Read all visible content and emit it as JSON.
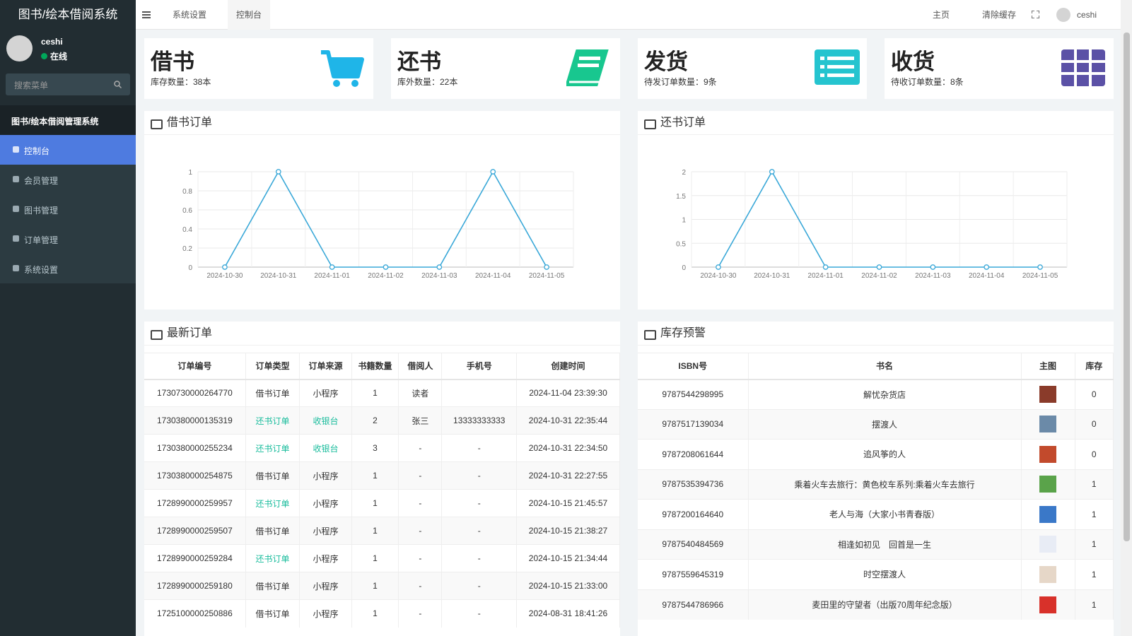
{
  "sidebar": {
    "title": "图书/绘本借阅系统",
    "user": {
      "name": "ceshi",
      "status": "在线"
    },
    "search_placeholder": "搜索菜单",
    "menu_header": "图书/绘本借阅管理系统",
    "menu": [
      "控制台",
      "会员管理",
      "图书管理",
      "订单管理",
      "系统设置"
    ]
  },
  "topbar": {
    "tabs": [
      "系统设置",
      "控制台"
    ],
    "links": [
      "主页",
      "清除缓存"
    ],
    "user": "ceshi"
  },
  "cards": [
    {
      "title": "借书",
      "text": "库存数量：38本",
      "color": "#1fb5e8"
    },
    {
      "title": "还书",
      "text": "库外数量：22本",
      "color": "#18c78f"
    },
    {
      "title": "发货",
      "text": "待发订单数量：9条",
      "color": "#25c4cf"
    },
    {
      "title": "收货",
      "text": "待收订单数量：8条",
      "color": "#5b51a6"
    }
  ],
  "chart_data": [
    {
      "type": "line",
      "title": "借书订单",
      "categories": [
        "2024-10-30",
        "2024-10-31",
        "2024-11-01",
        "2024-11-02",
        "2024-11-03",
        "2024-11-04",
        "2024-11-05"
      ],
      "values": [
        0,
        1,
        0,
        0,
        0,
        1,
        0
      ],
      "color": "#3aa8d8",
      "ylim": [
        0,
        1
      ],
      "yticks": [
        0,
        0.2,
        0.4,
        0.6,
        0.8,
        1
      ],
      "grid": true
    },
    {
      "type": "line",
      "title": "还书订单",
      "categories": [
        "2024-10-30",
        "2024-10-31",
        "2024-11-01",
        "2024-11-02",
        "2024-11-03",
        "2024-11-04",
        "2024-11-05"
      ],
      "values": [
        0,
        2,
        0,
        0,
        0,
        0,
        0
      ],
      "color": "#3aa8d8",
      "ylim": [
        0,
        2
      ],
      "yticks": [
        0,
        0.5,
        1,
        1.5,
        2
      ],
      "grid": true
    }
  ],
  "orders": {
    "title": "最新订单",
    "columns": [
      "订单编号",
      "订单类型",
      "订单来源",
      "书籍数量",
      "借阅人",
      "手机号",
      "创建时间"
    ],
    "rows": [
      [
        "1730730000264770",
        "借书订单",
        "小程序",
        1,
        "读者",
        null,
        "2024-11-04 23:39:30"
      ],
      [
        "1730380000135319",
        "还书订单",
        "收银台",
        2,
        "张三",
        "13333333333",
        "2024-10-31 22:35:44"
      ],
      [
        "1730380000255234",
        "还书订单",
        "收银台",
        3,
        "-",
        "-",
        "2024-10-31 22:34:50"
      ],
      [
        "1730380000254875",
        "借书订单",
        "小程序",
        1,
        "-",
        "-",
        "2024-10-31 22:27:55"
      ],
      [
        "1728990000259957",
        "还书订单",
        "小程序",
        1,
        "-",
        "-",
        "2024-10-15 21:45:57"
      ],
      [
        "1728990000259507",
        "借书订单",
        "小程序",
        1,
        "-",
        "-",
        "2024-10-15 21:38:27"
      ],
      [
        "1728990000259284",
        "还书订单",
        "小程序",
        1,
        "-",
        "-",
        "2024-10-15 21:34:44"
      ],
      [
        "1728990000259180",
        "借书订单",
        "小程序",
        1,
        "-",
        "-",
        "2024-10-15 21:33:00"
      ],
      [
        "1725100000250886",
        "借书订单",
        "小程序",
        1,
        "-",
        "-",
        "2024-08-31 18:41:26"
      ]
    ],
    "accent_color": "#18bc9c",
    "accent_cells": [
      [
        1,
        1
      ],
      [
        1,
        2
      ],
      [
        2,
        1
      ],
      [
        2,
        2
      ],
      [
        4,
        1
      ],
      [
        6,
        1
      ]
    ]
  },
  "stock": {
    "title": "库存预警",
    "columns": [
      "ISBN号",
      "书名",
      "主图",
      "库存"
    ],
    "rows": [
      [
        "9787544298995",
        "解忧杂货店",
        0
      ],
      [
        "9787517139034",
        "摆渡人",
        0
      ],
      [
        "9787208061644",
        "追风筝的人",
        0
      ],
      [
        "9787535394736",
        "乘着火车去旅行：黄色校车系列:乘着火车去旅行",
        1
      ],
      [
        "9787200164640",
        "老人与海（大家小书青春版）",
        1
      ],
      [
        "9787540484569",
        "相逢如初见　回首是一生",
        1
      ],
      [
        "9787559645319",
        "时空摆渡人",
        1
      ],
      [
        "9787544786966",
        "麦田里的守望者（出版70周年纪念版）",
        1
      ]
    ]
  }
}
